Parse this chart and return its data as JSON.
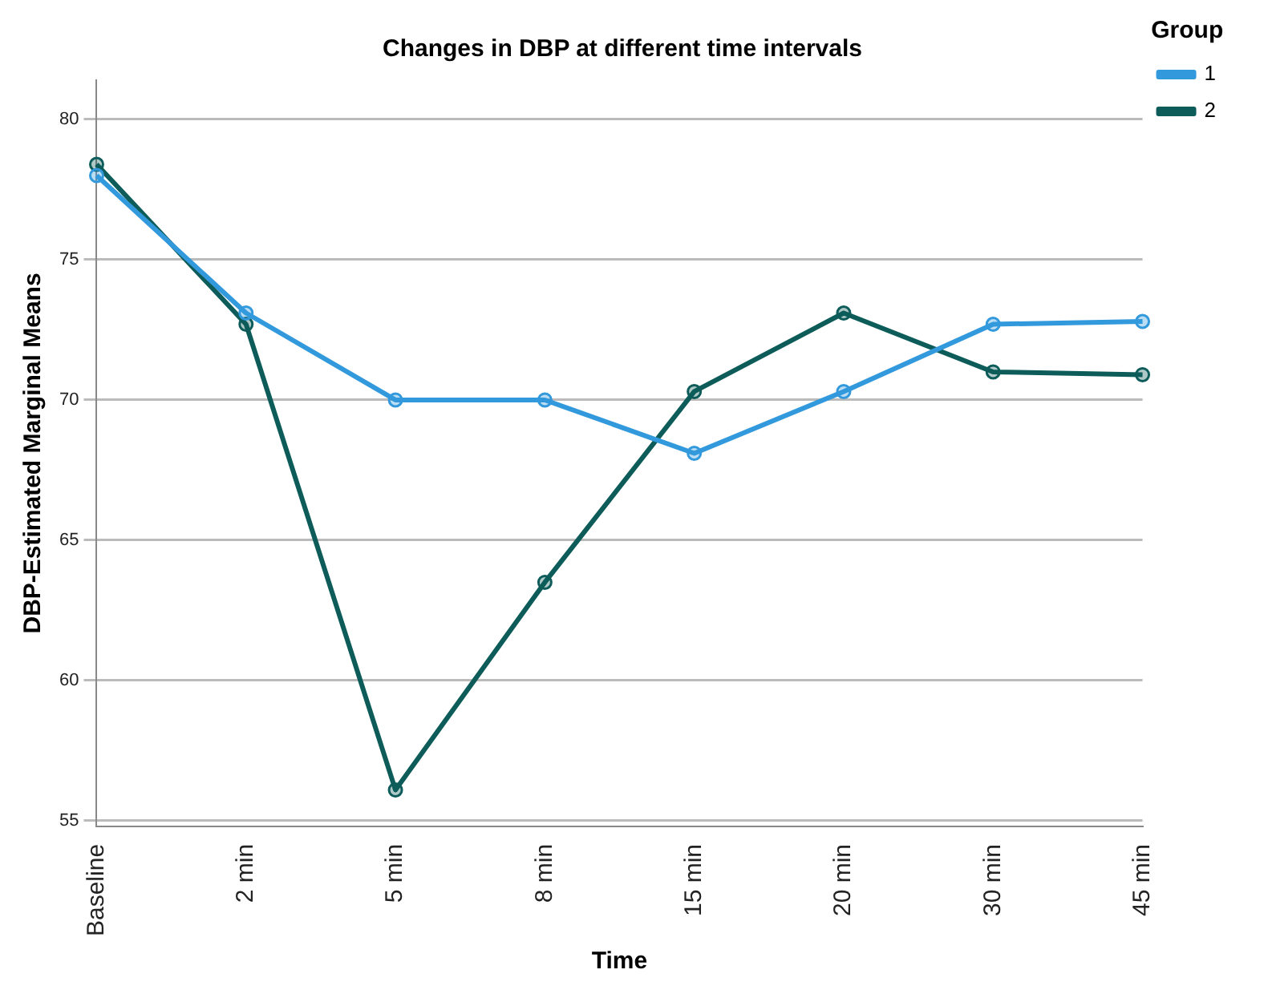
{
  "chart_data": {
    "type": "line",
    "title": "Changes in DBP at different time intervals",
    "xlabel": "Time",
    "ylabel": "DBP-Estimated Marginal Means",
    "legend_title": "Group",
    "categories": [
      "Baseline",
      "2 min",
      "5 min",
      "8 min",
      "15 min",
      "20 min",
      "30 min",
      "45 min"
    ],
    "series": [
      {
        "name": "1",
        "color": "#3399dd",
        "values": [
          78.0,
          73.1,
          70.0,
          70.0,
          68.1,
          70.3,
          72.7,
          72.8
        ]
      },
      {
        "name": "2",
        "color": "#0d5c5a",
        "values": [
          78.4,
          72.7,
          56.1,
          63.5,
          70.3,
          73.1,
          71.0,
          70.9
        ]
      }
    ],
    "ylim": [
      54.8,
      81.4
    ],
    "yticks": [
      55,
      60,
      65,
      70,
      75,
      80
    ],
    "grid": "y",
    "legend": "top right",
    "marker": "circle",
    "line_style": "solid"
  }
}
